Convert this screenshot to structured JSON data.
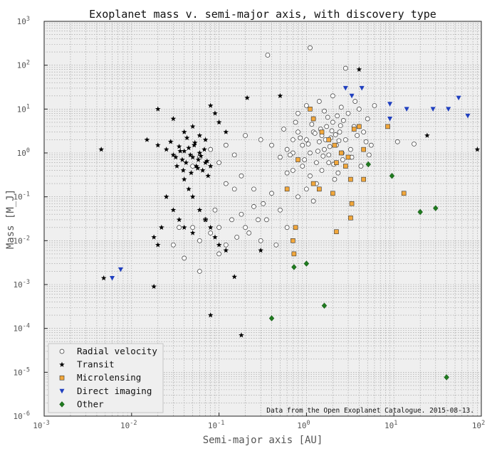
{
  "chart_data": {
    "type": "scatter",
    "title": "Exoplanet mass v. semi-major axis, with discovery type",
    "xlabel": "Semi-major axis [AU]",
    "ylabel": "Mass [M_J]",
    "xscale": "log",
    "yscale": "log",
    "xlim": [
      0.001,
      100
    ],
    "ylim": [
      1e-06,
      1000
    ],
    "x_ticks": [
      {
        "value": 0.001,
        "base": "10",
        "exp": "-3"
      },
      {
        "value": 0.01,
        "base": "10",
        "exp": "-2"
      },
      {
        "value": 0.1,
        "base": "10",
        "exp": "-1"
      },
      {
        "value": 1,
        "base": "10",
        "exp": "0"
      },
      {
        "value": 10,
        "base": "10",
        "exp": "1"
      },
      {
        "value": 100,
        "base": "10",
        "exp": "2"
      }
    ],
    "y_ticks": [
      {
        "value": 1e-06,
        "base": "10",
        "exp": "-6"
      },
      {
        "value": 1e-05,
        "base": "10",
        "exp": "-5"
      },
      {
        "value": 0.0001,
        "base": "10",
        "exp": "-4"
      },
      {
        "value": 0.001,
        "base": "10",
        "exp": "-3"
      },
      {
        "value": 0.01,
        "base": "10",
        "exp": "-2"
      },
      {
        "value": 0.1,
        "base": "10",
        "exp": "-1"
      },
      {
        "value": 1,
        "base": "10",
        "exp": "0"
      },
      {
        "value": 10,
        "base": "10",
        "exp": "1"
      },
      {
        "value": 100,
        "base": "10",
        "exp": "2"
      },
      {
        "value": 1000,
        "base": "10",
        "exp": "3"
      }
    ],
    "grid": true,
    "legend_position": "bottom-left",
    "annotation": "Data from the Open Exoplanet Catalogue. 2015-08-13.",
    "series": [
      {
        "name": "Radial velocity",
        "marker": "circle-open",
        "color": "#ffffff",
        "edge": "#333333",
        "points": [
          [
            0.36,
            170
          ],
          [
            1.1,
            250
          ],
          [
            2.8,
            85
          ],
          [
            0.12,
            0.2
          ],
          [
            0.15,
            0.15
          ],
          [
            0.2,
            2.5
          ],
          [
            0.3,
            2
          ],
          [
            0.4,
            1.5
          ],
          [
            0.5,
            0.8
          ],
          [
            0.6,
            1.2
          ],
          [
            0.7,
            2
          ],
          [
            0.8,
            3
          ],
          [
            0.9,
            1.5
          ],
          [
            1.0,
            2
          ],
          [
            1.1,
            1
          ],
          [
            1.2,
            3
          ],
          [
            1.3,
            0.6
          ],
          [
            1.4,
            1.8
          ],
          [
            1.5,
            2.5
          ],
          [
            1.6,
            1.2
          ],
          [
            1.7,
            4
          ],
          [
            1.8,
            0.9
          ],
          [
            1.9,
            2.2
          ],
          [
            2.0,
            5
          ],
          [
            2.2,
            1.5
          ],
          [
            2.4,
            3
          ],
          [
            2.6,
            0.7
          ],
          [
            2.8,
            2
          ],
          [
            3.0,
            8
          ],
          [
            3.2,
            1.2
          ],
          [
            3.5,
            4
          ],
          [
            3.8,
            2.5
          ],
          [
            4.0,
            10
          ],
          [
            4.5,
            3
          ],
          [
            5.0,
            6
          ],
          [
            5.5,
            1.5
          ],
          [
            6.0,
            12
          ],
          [
            0.8,
            8
          ],
          [
            1.0,
            12
          ],
          [
            1.2,
            6
          ],
          [
            1.4,
            15
          ],
          [
            1.6,
            9
          ],
          [
            2.0,
            20
          ],
          [
            2.5,
            11
          ],
          [
            1.1,
            0.3
          ],
          [
            1.3,
            0.2
          ],
          [
            0.9,
            0.5
          ],
          [
            1.5,
            0.4
          ],
          [
            2.1,
            0.25
          ],
          [
            0.7,
            0.4
          ],
          [
            0.05,
            0.02
          ],
          [
            0.06,
            0.01
          ],
          [
            0.07,
            0.03
          ],
          [
            0.08,
            0.015
          ],
          [
            0.09,
            0.05
          ],
          [
            0.1,
            0.02
          ],
          [
            0.12,
            0.008
          ],
          [
            0.14,
            0.03
          ],
          [
            0.16,
            0.012
          ],
          [
            0.18,
            0.04
          ],
          [
            0.2,
            0.02
          ],
          [
            0.25,
            0.06
          ],
          [
            0.3,
            0.01
          ],
          [
            0.35,
            0.03
          ],
          [
            0.05,
            0.5
          ],
          [
            0.06,
            0.8
          ],
          [
            0.08,
            1.2
          ],
          [
            0.1,
            0.6
          ],
          [
            0.12,
            1.5
          ],
          [
            0.15,
            0.9
          ],
          [
            0.04,
            0.004
          ],
          [
            0.03,
            0.008
          ],
          [
            0.035,
            0.02
          ],
          [
            0.06,
            0.002
          ],
          [
            0.1,
            0.005
          ],
          [
            0.45,
            0.008
          ],
          [
            0.6,
            0.02
          ],
          [
            0.5,
            0.05
          ],
          [
            0.25,
            0.15
          ],
          [
            0.18,
            0.3
          ],
          [
            0.7,
            1.0
          ],
          [
            0.85,
            2.2
          ],
          [
            0.95,
            0.7
          ],
          [
            1.05,
            1.6
          ],
          [
            1.15,
            4.5
          ],
          [
            1.25,
            2.8
          ],
          [
            1.35,
            1.1
          ],
          [
            1.45,
            3.5
          ],
          [
            1.55,
            0.85
          ],
          [
            1.65,
            2.0
          ],
          [
            1.75,
            6.5
          ],
          [
            1.85,
            1.4
          ],
          [
            1.95,
            3.2
          ],
          [
            2.05,
            0.55
          ],
          [
            2.15,
            2.6
          ],
          [
            2.25,
            7
          ],
          [
            2.35,
            1.9
          ],
          [
            2.45,
            4.2
          ],
          [
            2.55,
            1.0
          ],
          [
            2.65,
            5.5
          ],
          [
            0.55,
            3.5
          ],
          [
            0.65,
            0.9
          ],
          [
            0.75,
            5
          ],
          [
            0.6,
            0.35
          ],
          [
            0.4,
            0.12
          ],
          [
            0.32,
            0.07
          ],
          [
            0.28,
            0.03
          ],
          [
            0.22,
            0.015
          ],
          [
            11,
            1.8
          ],
          [
            17,
            1.6
          ],
          [
            3.3,
            0.8
          ],
          [
            3.6,
            15
          ],
          [
            4.2,
            0.5
          ],
          [
            4.8,
            1.8
          ],
          [
            5.2,
            0.9
          ],
          [
            1.0,
            0.15
          ],
          [
            0.8,
            0.1
          ],
          [
            1.2,
            0.08
          ],
          [
            1.8,
            0.6
          ],
          [
            2.3,
            0.35
          ]
        ]
      },
      {
        "name": "Transit",
        "marker": "star",
        "color": "#000000",
        "points": [
          [
            0.0045,
            1.2
          ],
          [
            0.0048,
            0.0014
          ],
          [
            0.018,
            0.012
          ],
          [
            0.02,
            0.008
          ],
          [
            0.022,
            0.02
          ],
          [
            0.018,
            0.0009
          ],
          [
            0.015,
            2
          ],
          [
            0.02,
            1.5
          ],
          [
            0.025,
            1.2
          ],
          [
            0.03,
            0.9
          ],
          [
            0.032,
            0.8
          ],
          [
            0.035,
            1.4
          ],
          [
            0.038,
            0.7
          ],
          [
            0.04,
            1.1
          ],
          [
            0.042,
            0.6
          ],
          [
            0.045,
            1.3
          ],
          [
            0.047,
            0.9
          ],
          [
            0.05,
            0.8
          ],
          [
            0.052,
            1.5
          ],
          [
            0.055,
            0.5
          ],
          [
            0.058,
            0.7
          ],
          [
            0.06,
            1.0
          ],
          [
            0.065,
            0.4
          ],
          [
            0.07,
            0.6
          ],
          [
            0.075,
            0.3
          ],
          [
            0.08,
            0.5
          ],
          [
            0.02,
            10
          ],
          [
            0.03,
            6
          ],
          [
            0.04,
            3
          ],
          [
            0.05,
            4
          ],
          [
            0.06,
            2.5
          ],
          [
            0.07,
            2
          ],
          [
            0.08,
            12
          ],
          [
            0.09,
            8
          ],
          [
            0.1,
            5
          ],
          [
            0.12,
            3
          ],
          [
            0.04,
            0.25
          ],
          [
            0.045,
            0.15
          ],
          [
            0.05,
            0.1
          ],
          [
            0.06,
            0.05
          ],
          [
            0.07,
            0.03
          ],
          [
            0.08,
            0.02
          ],
          [
            0.09,
            0.012
          ],
          [
            0.1,
            0.008
          ],
          [
            0.12,
            0.006
          ],
          [
            0.04,
            0.02
          ],
          [
            0.05,
            0.015
          ],
          [
            0.03,
            0.05
          ],
          [
            0.035,
            0.03
          ],
          [
            0.025,
            0.1
          ],
          [
            0.08,
            0.0002
          ],
          [
            0.15,
            0.0015
          ],
          [
            0.18,
            7e-05
          ],
          [
            0.21,
            18
          ],
          [
            0.5,
            20
          ],
          [
            0.3,
            0.006
          ],
          [
            4.0,
            80
          ],
          [
            24,
            2.5
          ],
          [
            90,
            1.2
          ],
          [
            0.028,
            1.8
          ],
          [
            0.033,
            0.5
          ],
          [
            0.036,
            1.1
          ],
          [
            0.039,
            0.4
          ],
          [
            0.043,
            2.2
          ],
          [
            0.048,
            0.35
          ],
          [
            0.053,
            1.7
          ],
          [
            0.057,
            0.45
          ],
          [
            0.062,
            0.85
          ],
          [
            0.068,
            1.2
          ],
          [
            0.073,
            0.65
          ]
        ]
      },
      {
        "name": "Microlensing",
        "marker": "square",
        "color": "#f2a73b",
        "edge": "#333333",
        "points": [
          [
            1.1,
            10
          ],
          [
            1.2,
            6
          ],
          [
            1.5,
            3
          ],
          [
            1.8,
            2
          ],
          [
            2.1,
            1.5
          ],
          [
            2.5,
            1
          ],
          [
            2.2,
            0.6
          ],
          [
            2.8,
            0.5
          ],
          [
            3.5,
            3.5
          ],
          [
            4.0,
            4
          ],
          [
            3.0,
            0.8
          ],
          [
            3.2,
            0.25
          ],
          [
            3.3,
            0.07
          ],
          [
            3.2,
            0.033
          ],
          [
            2.2,
            0.016
          ],
          [
            0.75,
            0.02
          ],
          [
            0.72,
            0.005
          ],
          [
            0.7,
            0.01
          ],
          [
            0.8,
            0.7
          ],
          [
            0.6,
            0.15
          ],
          [
            1.2,
            0.2
          ],
          [
            2.0,
            0.12
          ],
          [
            4.5,
            0.25
          ],
          [
            8.5,
            4
          ],
          [
            13,
            0.12
          ],
          [
            4.5,
            1.2
          ],
          [
            1.4,
            0.15
          ]
        ]
      },
      {
        "name": "Direct imaging",
        "marker": "triangle-down",
        "color": "#1f3fbf",
        "points": [
          [
            0.0075,
            0.0022
          ],
          [
            0.006,
            0.0014
          ],
          [
            2.8,
            30
          ],
          [
            3.3,
            20
          ],
          [
            4.3,
            30
          ],
          [
            9,
            6
          ],
          [
            9,
            13
          ],
          [
            14,
            10
          ],
          [
            28,
            10
          ],
          [
            42,
            10
          ],
          [
            55,
            18
          ],
          [
            70,
            7
          ]
        ]
      },
      {
        "name": "Other",
        "marker": "diamond",
        "color": "#1f7a1f",
        "points": [
          [
            5.1,
            0.55
          ],
          [
            9.5,
            0.3
          ],
          [
            20,
            0.045
          ],
          [
            30,
            0.055
          ],
          [
            0.72,
            0.0025
          ],
          [
            1.0,
            0.003
          ],
          [
            1.6,
            0.00033
          ],
          [
            0.4,
            0.00017
          ],
          [
            40,
            7.7e-06
          ]
        ]
      }
    ]
  }
}
